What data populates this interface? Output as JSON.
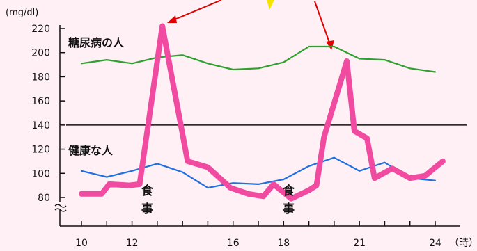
{
  "chart_data": {
    "type": "line",
    "title": "",
    "xlabel": "",
    "ylabel": "",
    "y_unit": "(mg/dl)",
    "x_unit": "（時）",
    "xlim": [
      9.5,
      24.8
    ],
    "ylim": [
      80,
      225
    ],
    "y_axis_break": true,
    "grid": false,
    "x_ticks": [
      10,
      11,
      12,
      13,
      14,
      15,
      16,
      17,
      18,
      19,
      20,
      21,
      22,
      23,
      24
    ],
    "x_tick_labels": [
      {
        "x": 10,
        "label": "10"
      },
      {
        "x": 12,
        "label": "12"
      },
      {
        "x": 16,
        "label": "16"
      },
      {
        "x": 18,
        "label": "18"
      },
      {
        "x": 21,
        "label": "21"
      },
      {
        "x": 24,
        "label": "24"
      }
    ],
    "y_ticks": [
      80,
      100,
      120,
      140,
      160,
      180,
      200,
      220
    ],
    "reference_line": {
      "y": 140
    },
    "series": [
      {
        "name": "糖尿病の人",
        "color": "#2ea02e",
        "points": [
          [
            10,
            191
          ],
          [
            11,
            194
          ],
          [
            12,
            191
          ],
          [
            13,
            196
          ],
          [
            14,
            198
          ],
          [
            15,
            191
          ],
          [
            16,
            186
          ],
          [
            17,
            187
          ],
          [
            18,
            192
          ],
          [
            19,
            205
          ],
          [
            20,
            205
          ],
          [
            21,
            195
          ],
          [
            22,
            194
          ],
          [
            23,
            187
          ],
          [
            24,
            184
          ]
        ]
      },
      {
        "name": "健康な人",
        "color": "#1f6fe0",
        "points": [
          [
            10,
            102
          ],
          [
            11,
            97
          ],
          [
            12,
            102
          ],
          [
            13,
            108
          ],
          [
            14,
            101
          ],
          [
            15,
            88
          ],
          [
            16,
            92
          ],
          [
            17,
            91
          ],
          [
            18,
            95
          ],
          [
            19,
            106
          ],
          [
            20,
            113
          ],
          [
            21,
            102
          ],
          [
            22,
            109
          ],
          [
            23,
            96
          ],
          [
            24,
            94
          ]
        ]
      },
      {
        "name": "",
        "color": "#f04ba0",
        "points": [
          [
            10,
            83
          ],
          [
            10.8,
            83
          ],
          [
            11.1,
            91
          ],
          [
            11.9,
            90
          ],
          [
            12.3,
            91
          ],
          [
            13.2,
            222
          ],
          [
            14.2,
            110
          ],
          [
            15,
            105
          ],
          [
            15.9,
            88
          ],
          [
            16.6,
            83
          ],
          [
            17.2,
            81
          ],
          [
            17.6,
            91
          ],
          [
            18.3,
            79
          ],
          [
            19,
            86
          ],
          [
            19.3,
            90
          ],
          [
            19.6,
            130
          ],
          [
            20.5,
            193
          ],
          [
            20.8,
            135
          ],
          [
            21.3,
            129
          ],
          [
            21.6,
            96
          ],
          [
            22.3,
            104
          ],
          [
            23,
            96
          ],
          [
            23.6,
            98
          ],
          [
            24.3,
            110
          ]
        ]
      }
    ],
    "annotations": [
      {
        "text": "食事",
        "x": 12.6
      },
      {
        "text": "食事",
        "x": 18.2
      }
    ]
  }
}
